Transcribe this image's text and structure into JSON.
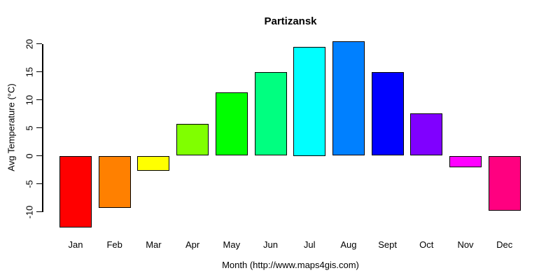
{
  "chart_data": {
    "type": "bar",
    "title": "Partizansk",
    "xlabel": "Month (http://www.maps4gis.com)",
    "ylabel": "Avg Temperature (°C)",
    "categories": [
      "Jan",
      "Feb",
      "Mar",
      "Apr",
      "May",
      "Jun",
      "Jul",
      "Aug",
      "Sept",
      "Oct",
      "Nov",
      "Dec"
    ],
    "values": [
      -12.8,
      -9.3,
      -2.7,
      5.7,
      11.3,
      14.9,
      19.5,
      20.4,
      14.9,
      7.6,
      -2.0,
      -9.8
    ],
    "bar_colors": [
      "#FF0000",
      "#FF8000",
      "#FFFF00",
      "#80FF00",
      "#00FF00",
      "#00FF80",
      "#00FFFF",
      "#0080FF",
      "#0000FF",
      "#8000FF",
      "#FF00FF",
      "#FF0080"
    ],
    "yticks": [
      -10,
      -5,
      0,
      5,
      10,
      15,
      20
    ],
    "ylim": [
      -13.5,
      20.5
    ],
    "grid": false,
    "legend": "none",
    "bar_border_color": "#000000",
    "background_color": "#FFFFFF"
  }
}
